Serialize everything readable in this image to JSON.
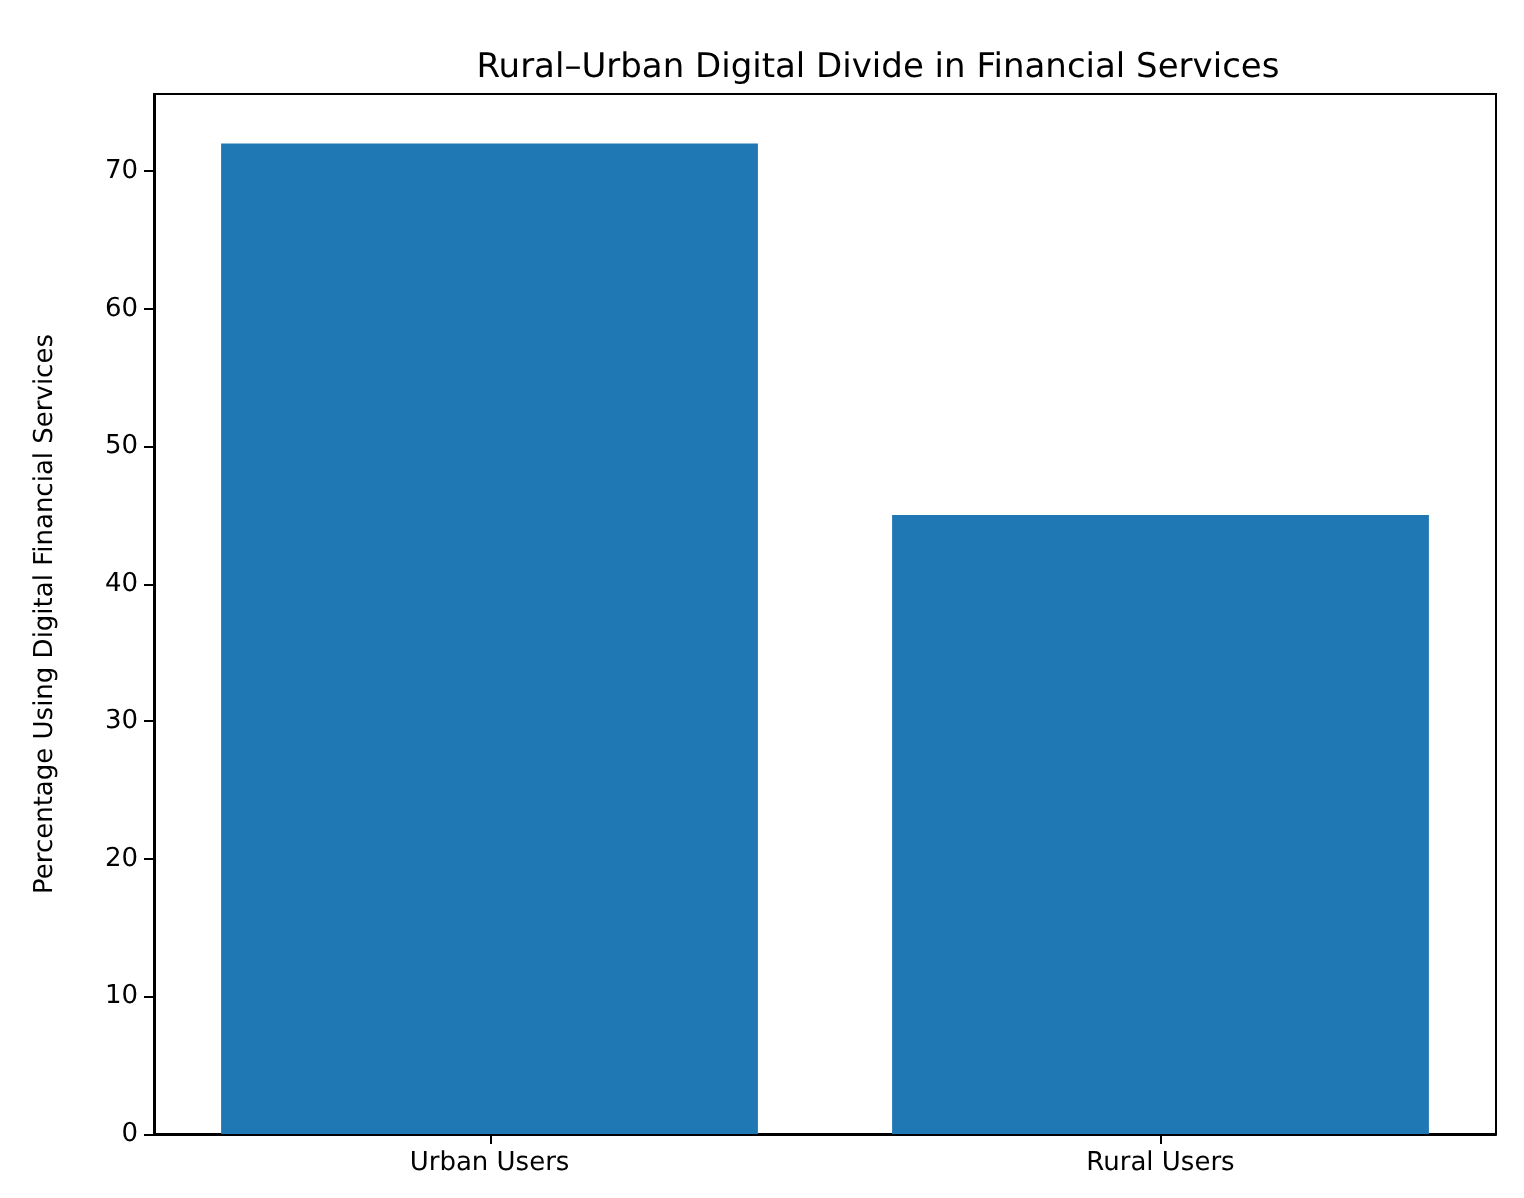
{
  "chart_data": {
    "type": "bar",
    "title": "Rural–Urban Digital Divide in Financial Services",
    "ylabel": "Percentage Using Digital Financial Services",
    "categories": [
      "Urban Users",
      "Rural Users"
    ],
    "values": [
      72,
      45
    ],
    "color": "#1f77b4",
    "ylim": [
      0,
      75.6
    ],
    "yticks": [
      0,
      10,
      20,
      30,
      40,
      50,
      60,
      70
    ],
    "grid": false
  }
}
